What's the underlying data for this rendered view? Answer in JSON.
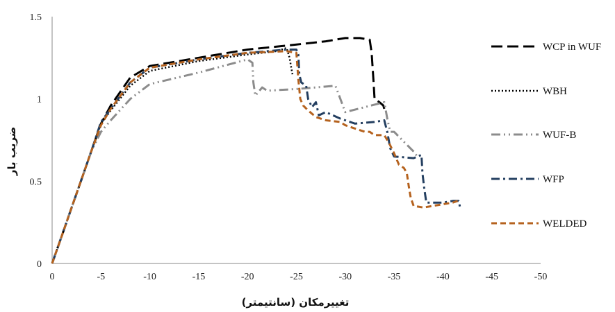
{
  "chart_data": {
    "type": "line",
    "title": "",
    "xlabel": "تغییرمکان (سانتیمتر)",
    "ylabel": "ضریب بار",
    "xlim": [
      0,
      -50
    ],
    "ylim": [
      0,
      1.5
    ],
    "x_ticks": [
      "0",
      "-5",
      "-10",
      "-15",
      "-20",
      "-25",
      "-30",
      "-35",
      "-40",
      "-45",
      "-50"
    ],
    "y_ticks": [
      "0",
      "0.5",
      "1",
      "1.5"
    ],
    "grid": false,
    "legend_position": "right",
    "series": [
      {
        "name": "WCP in WUF",
        "color": "#000000",
        "dash": "long-dash",
        "points": [
          [
            0,
            0
          ],
          [
            -1,
            0.17
          ],
          [
            -2,
            0.34
          ],
          [
            -3,
            0.51
          ],
          [
            -4,
            0.68
          ],
          [
            -5,
            0.85
          ],
          [
            -6,
            0.96
          ],
          [
            -8,
            1.13
          ],
          [
            -10,
            1.2
          ],
          [
            -15,
            1.25
          ],
          [
            -20,
            1.3
          ],
          [
            -25,
            1.33
          ],
          [
            -28,
            1.35
          ],
          [
            -30,
            1.37
          ],
          [
            -31.5,
            1.37
          ],
          [
            -32.5,
            1.36
          ],
          [
            -32.7,
            1.28
          ],
          [
            -32.9,
            1.1
          ],
          [
            -33,
            1.0
          ],
          [
            -33.5,
            0.98
          ],
          [
            -33.9,
            0.96
          ],
          [
            -34,
            0.94
          ]
        ]
      },
      {
        "name": "WBH",
        "color": "#000000",
        "dash": "dotted",
        "points": [
          [
            0,
            0
          ],
          [
            -1,
            0.17
          ],
          [
            -2,
            0.34
          ],
          [
            -3,
            0.51
          ],
          [
            -4,
            0.68
          ],
          [
            -5,
            0.85
          ],
          [
            -6,
            0.93
          ],
          [
            -8,
            1.08
          ],
          [
            -10,
            1.17
          ],
          [
            -15,
            1.23
          ],
          [
            -20,
            1.27
          ],
          [
            -23,
            1.29
          ],
          [
            -24,
            1.31
          ],
          [
            -24.3,
            1.25
          ],
          [
            -24.5,
            1.18
          ],
          [
            -24.6,
            1.15
          ]
        ]
      },
      {
        "name": "WUF-B",
        "color": "#8c8c8c",
        "dash": "dash-dot-dot",
        "points": [
          [
            0,
            0
          ],
          [
            -1,
            0.17
          ],
          [
            -2,
            0.34
          ],
          [
            -3,
            0.51
          ],
          [
            -4,
            0.68
          ],
          [
            -5,
            0.8
          ],
          [
            -6,
            0.87
          ],
          [
            -8,
            1.0
          ],
          [
            -10,
            1.09
          ],
          [
            -15,
            1.16
          ],
          [
            -20,
            1.24
          ],
          [
            -20.5,
            1.22
          ],
          [
            -20.6,
            1.1
          ],
          [
            -20.8,
            1.02
          ],
          [
            -21.5,
            1.07
          ],
          [
            -22,
            1.05
          ],
          [
            -25,
            1.06
          ],
          [
            -27,
            1.07
          ],
          [
            -29,
            1.08
          ],
          [
            -29.5,
            1.0
          ],
          [
            -30,
            0.92
          ],
          [
            -32,
            0.95
          ],
          [
            -34,
            0.98
          ],
          [
            -34.3,
            0.88
          ],
          [
            -34.6,
            0.8
          ],
          [
            -35,
            0.8
          ],
          [
            -36,
            0.74
          ],
          [
            -37,
            0.68
          ],
          [
            -37.5,
            0.64
          ]
        ]
      },
      {
        "name": "WFP",
        "color": "#243f60",
        "dash": "dash-dot",
        "points": [
          [
            0,
            0
          ],
          [
            -1,
            0.17
          ],
          [
            -2,
            0.34
          ],
          [
            -3,
            0.51
          ],
          [
            -4,
            0.68
          ],
          [
            -5,
            0.86
          ],
          [
            -6,
            0.94
          ],
          [
            -8,
            1.1
          ],
          [
            -10,
            1.19
          ],
          [
            -15,
            1.24
          ],
          [
            -20,
            1.28
          ],
          [
            -24,
            1.3
          ],
          [
            -25,
            1.3
          ],
          [
            -25.2,
            1.27
          ],
          [
            -25.3,
            1.15
          ],
          [
            -25.5,
            1.1
          ],
          [
            -26,
            1.08
          ],
          [
            -26.2,
            1.0
          ],
          [
            -26.6,
            0.95
          ],
          [
            -27,
            0.98
          ],
          [
            -27.3,
            0.9
          ],
          [
            -28,
            0.92
          ],
          [
            -29.5,
            0.88
          ],
          [
            -30,
            0.87
          ],
          [
            -31,
            0.85
          ],
          [
            -33,
            0.86
          ],
          [
            -34,
            0.87
          ],
          [
            -34.3,
            0.8
          ],
          [
            -34.6,
            0.7
          ],
          [
            -35,
            0.65
          ],
          [
            -37,
            0.64
          ],
          [
            -37.8,
            0.66
          ],
          [
            -37.9,
            0.55
          ],
          [
            -38.1,
            0.45
          ],
          [
            -38.3,
            0.37
          ],
          [
            -40,
            0.37
          ],
          [
            -41,
            0.38
          ],
          [
            -41.6,
            0.38
          ],
          [
            -41.8,
            0.33
          ]
        ]
      },
      {
        "name": "WELDED",
        "color": "#b5621e",
        "dash": "short-dash",
        "points": [
          [
            0,
            0
          ],
          [
            -1,
            0.17
          ],
          [
            -2,
            0.34
          ],
          [
            -3,
            0.51
          ],
          [
            -4,
            0.68
          ],
          [
            -5,
            0.84
          ],
          [
            -6,
            0.94
          ],
          [
            -8,
            1.1
          ],
          [
            -10,
            1.19
          ],
          [
            -15,
            1.24
          ],
          [
            -20,
            1.28
          ],
          [
            -24,
            1.29
          ],
          [
            -25,
            1.28
          ],
          [
            -25.2,
            1.12
          ],
          [
            -25.4,
            1.0
          ],
          [
            -25.7,
            0.96
          ],
          [
            -26.2,
            0.93
          ],
          [
            -27,
            0.89
          ],
          [
            -28,
            0.87
          ],
          [
            -29.5,
            0.86
          ],
          [
            -30,
            0.84
          ],
          [
            -31,
            0.82
          ],
          [
            -32,
            0.8
          ],
          [
            -32.5,
            0.8
          ],
          [
            -33,
            0.78
          ],
          [
            -34,
            0.78
          ],
          [
            -34.5,
            0.73
          ],
          [
            -35,
            0.67
          ],
          [
            -35.5,
            0.6
          ],
          [
            -36,
            0.58
          ],
          [
            -36.3,
            0.55
          ],
          [
            -36.5,
            0.47
          ],
          [
            -36.7,
            0.4
          ],
          [
            -37,
            0.35
          ],
          [
            -38,
            0.34
          ],
          [
            -39,
            0.35
          ],
          [
            -40,
            0.36
          ],
          [
            -41,
            0.37
          ],
          [
            -41.5,
            0.38
          ]
        ]
      }
    ]
  }
}
